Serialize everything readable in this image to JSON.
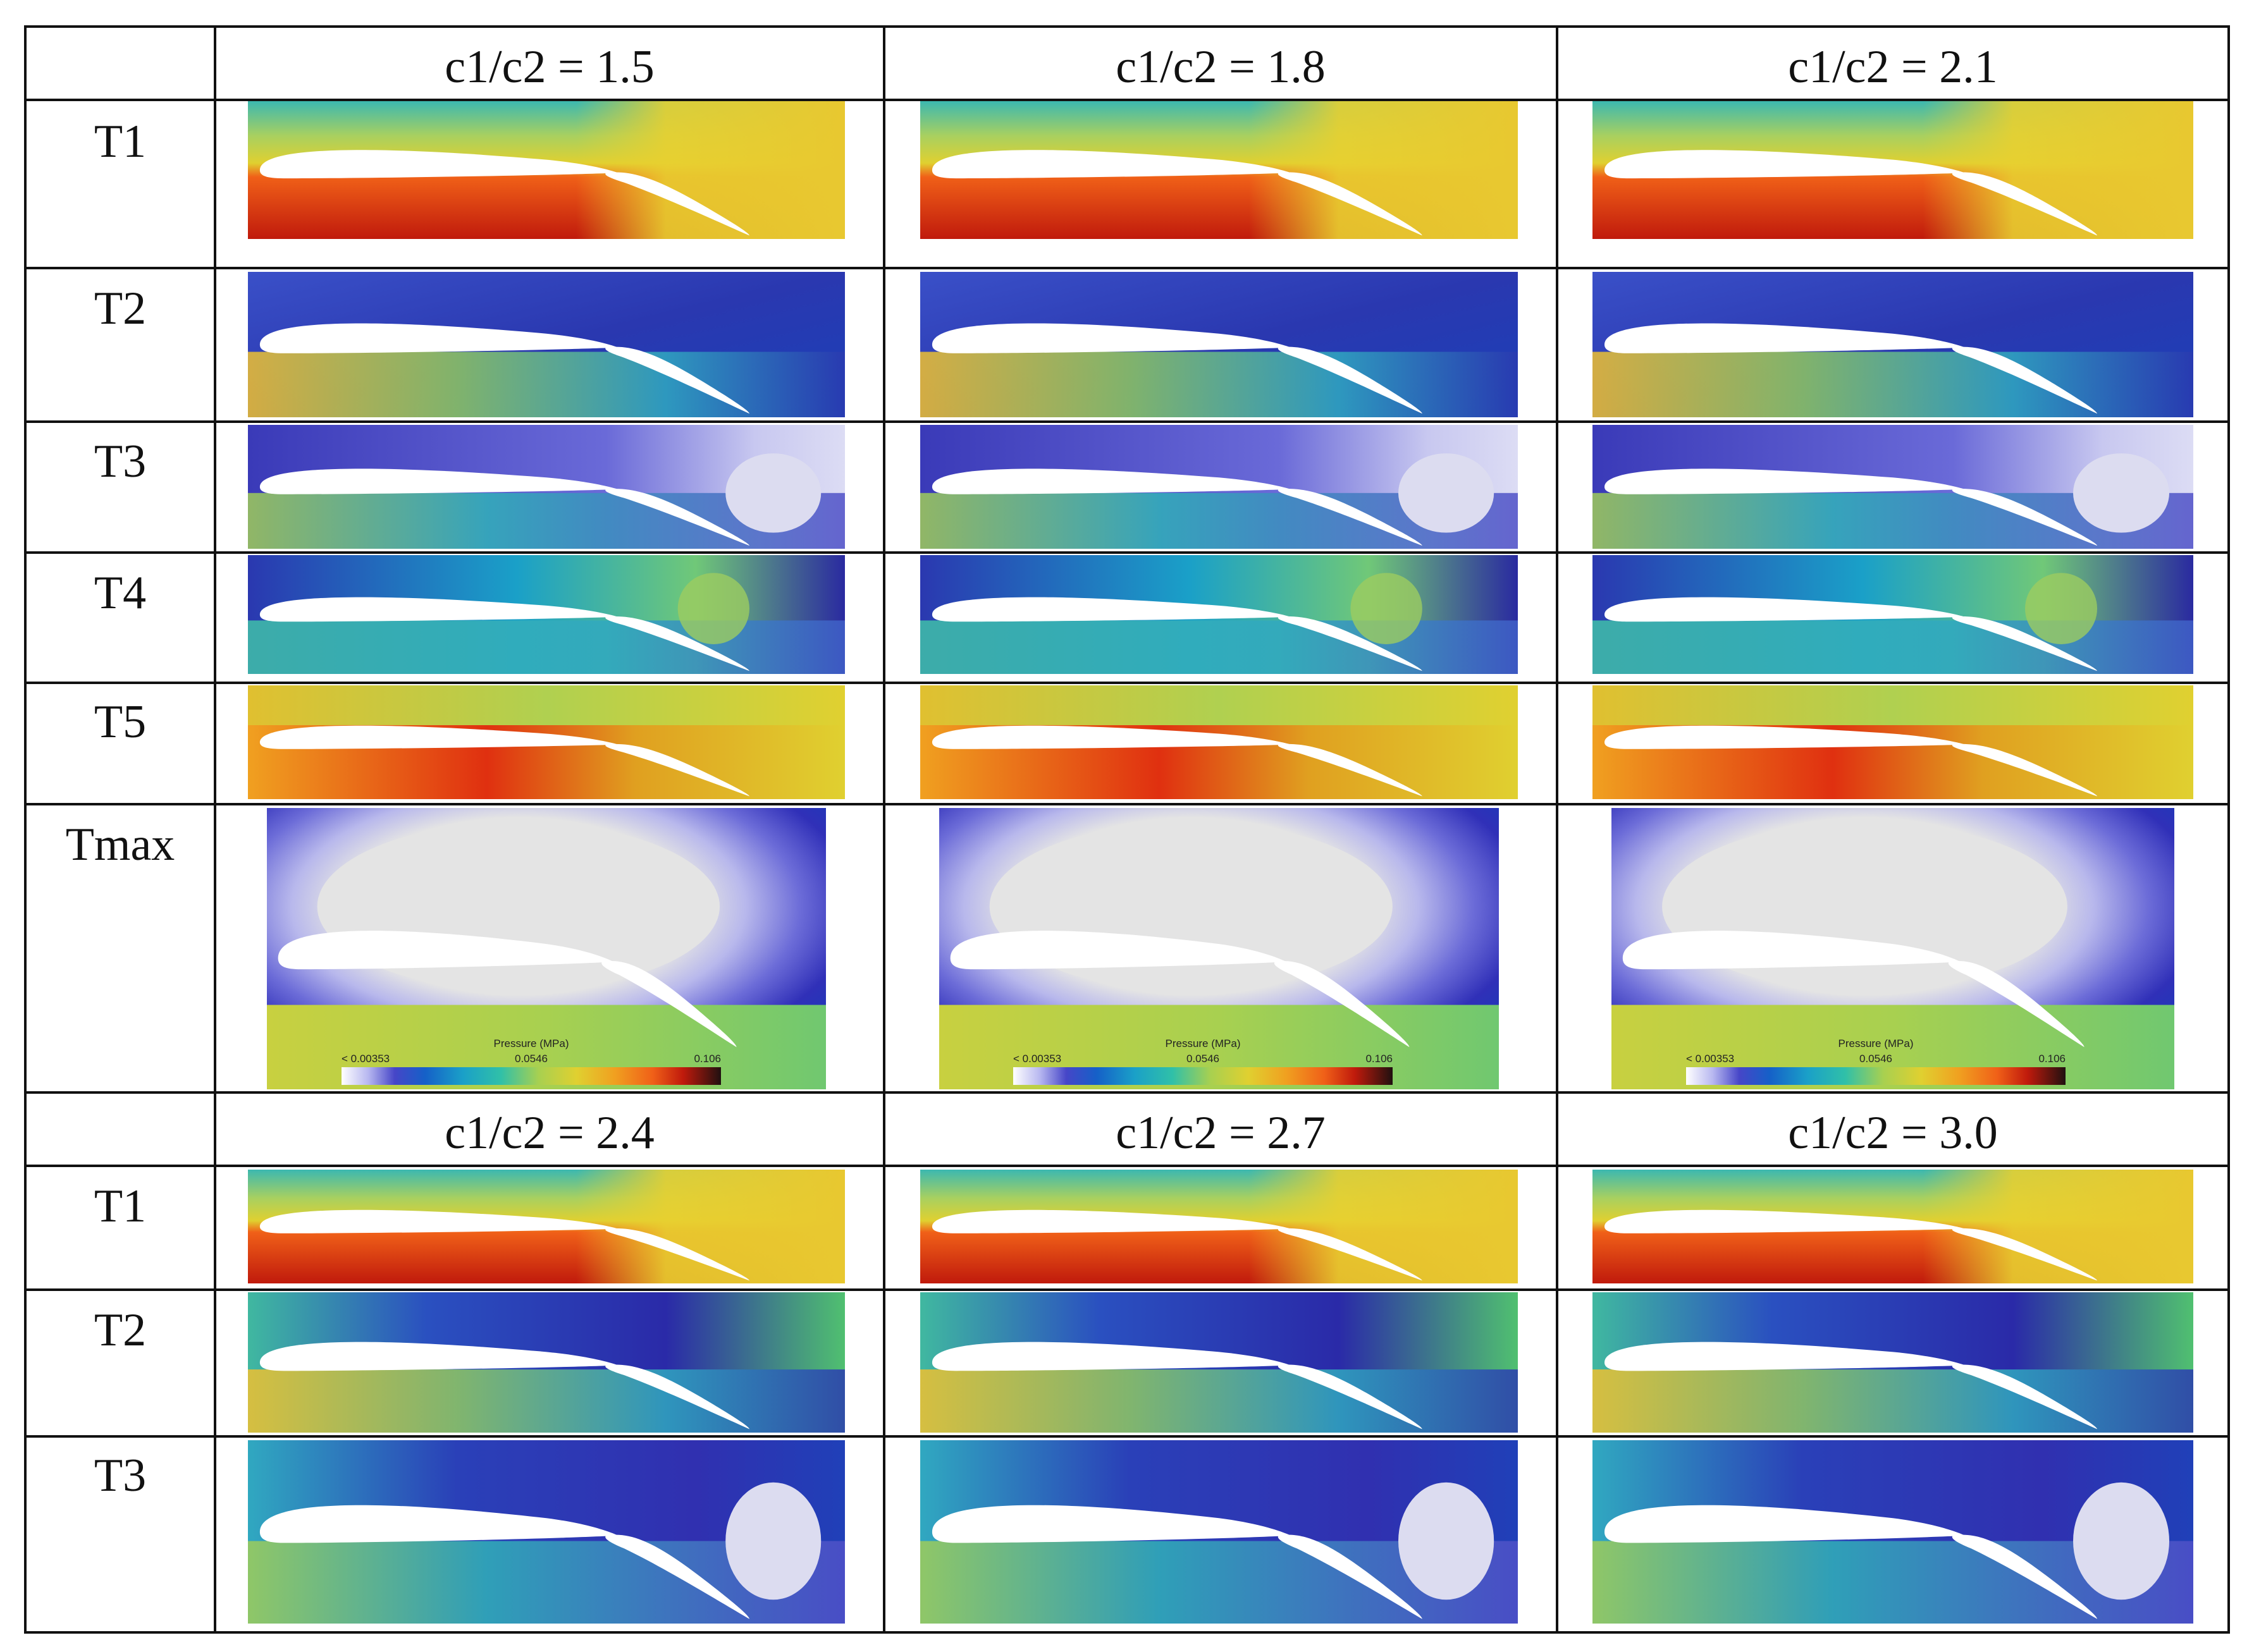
{
  "figure": {
    "top_block": {
      "column_headers": [
        "c1/c2 = 1.5",
        "c1/c2 = 1.8",
        "c1/c2 = 2.1"
      ],
      "row_labels": [
        "T1",
        "T2",
        "T3",
        "T4",
        "T5",
        "Tmax"
      ]
    },
    "bottom_block": {
      "column_headers": [
        "c1/c2 = 2.4",
        "c1/c2 = 2.7",
        "c1/c2 = 3.0"
      ],
      "row_labels": [
        "T1",
        "T2",
        "T3"
      ]
    },
    "legend": {
      "title": "Pressure (MPa)",
      "min_label": "< 0.00353",
      "mid_label": "0.0546",
      "max_label": "0.106",
      "colors": [
        "#e6e6e6",
        "#b7b7f0",
        "#7f7fe0",
        "#4646c8",
        "#2222a8",
        "#1560c8",
        "#1aa0c8",
        "#30c0a8",
        "#70c878",
        "#b0d050",
        "#e0d030",
        "#f0a020",
        "#f06018",
        "#d02010",
        "#901010",
        "#201010"
      ]
    },
    "colors": {
      "low": "#2020a0",
      "mid": "#80c860",
      "high": "#e03010",
      "max": "#8a1010"
    }
  }
}
